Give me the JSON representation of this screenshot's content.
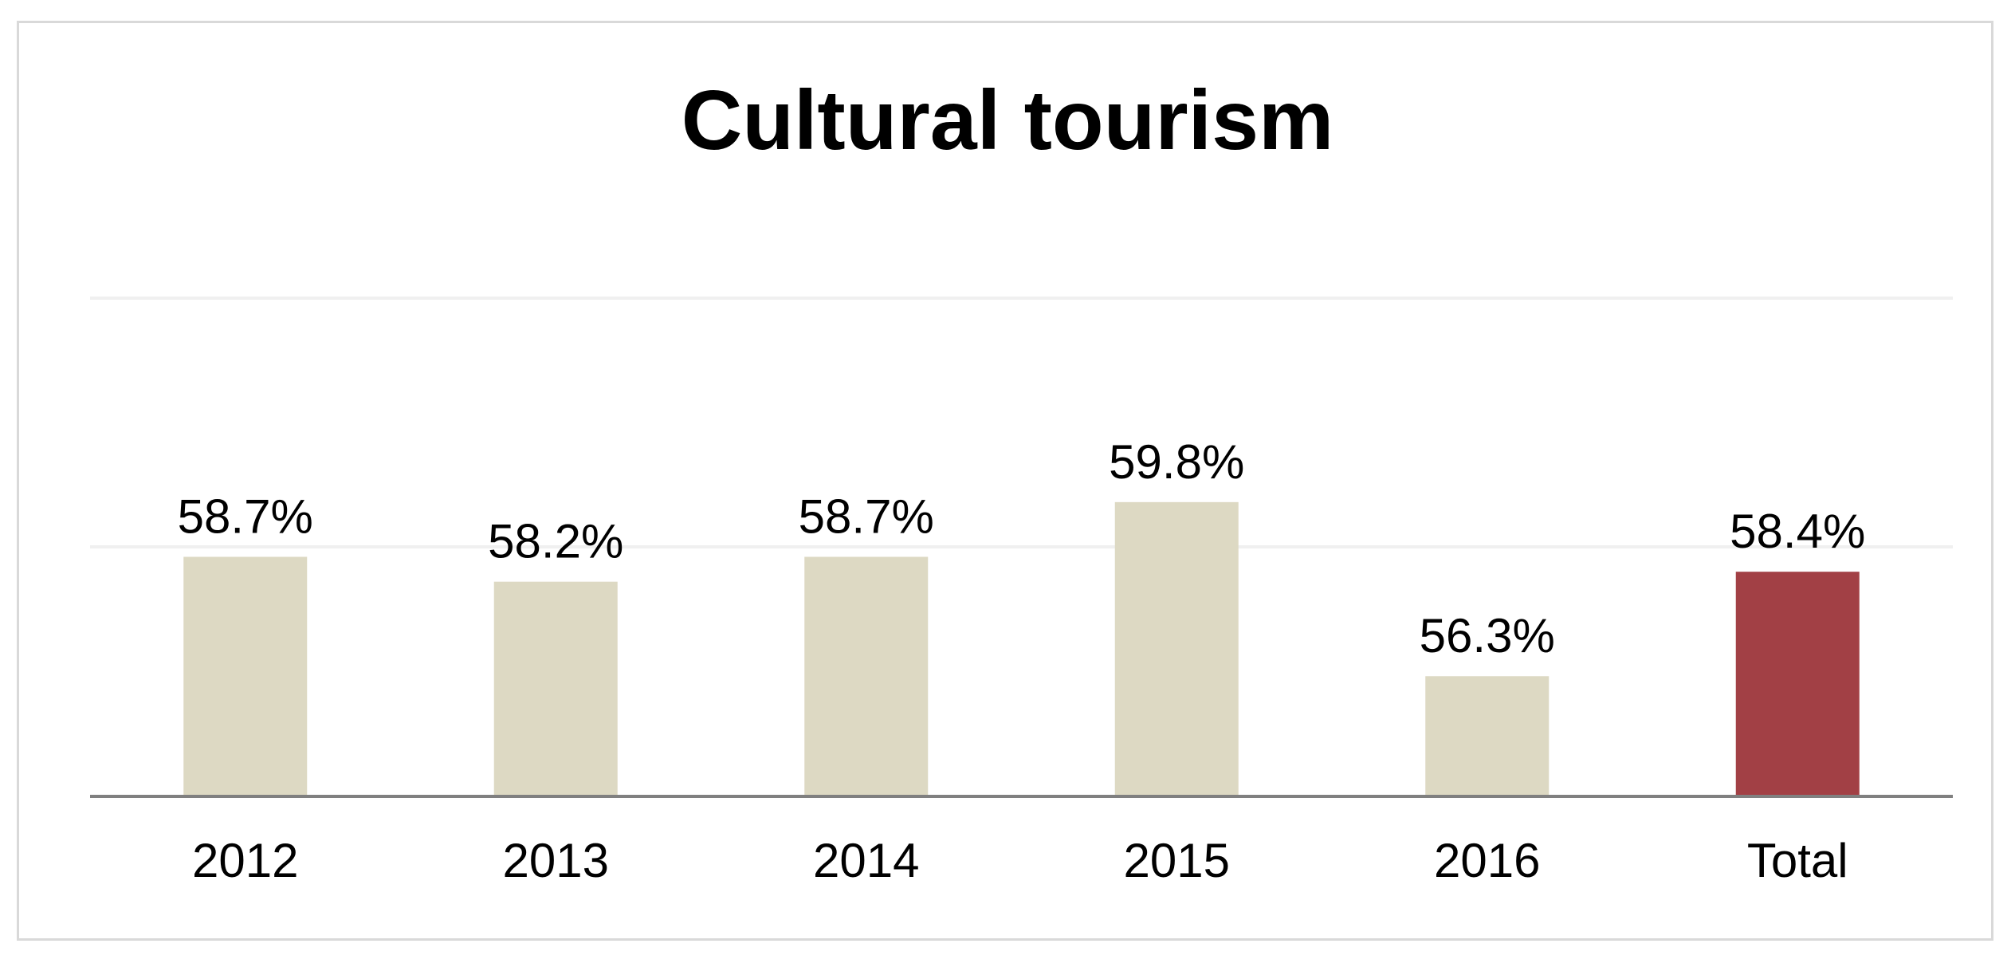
{
  "chart_data": {
    "type": "bar",
    "title": "Cultural tourism",
    "categories": [
      "2012",
      "2013",
      "2014",
      "2015",
      "2016",
      "Total"
    ],
    "values": [
      58.7,
      58.2,
      58.7,
      59.8,
      56.3,
      58.4
    ],
    "data_labels": [
      "58.7%",
      "58.2%",
      "58.7%",
      "59.8%",
      "56.3%",
      "58.4%"
    ],
    "xlabel": "",
    "ylabel": "",
    "ylim": [
      53.9,
      63.9
    ],
    "grid": true,
    "legend": "none",
    "colors": {
      "default_bar": "#ddd9c3",
      "highlight_bar": "#a24045",
      "gridline": "#f0f0f0",
      "axis": "#808080"
    },
    "highlight_category": "Total"
  }
}
